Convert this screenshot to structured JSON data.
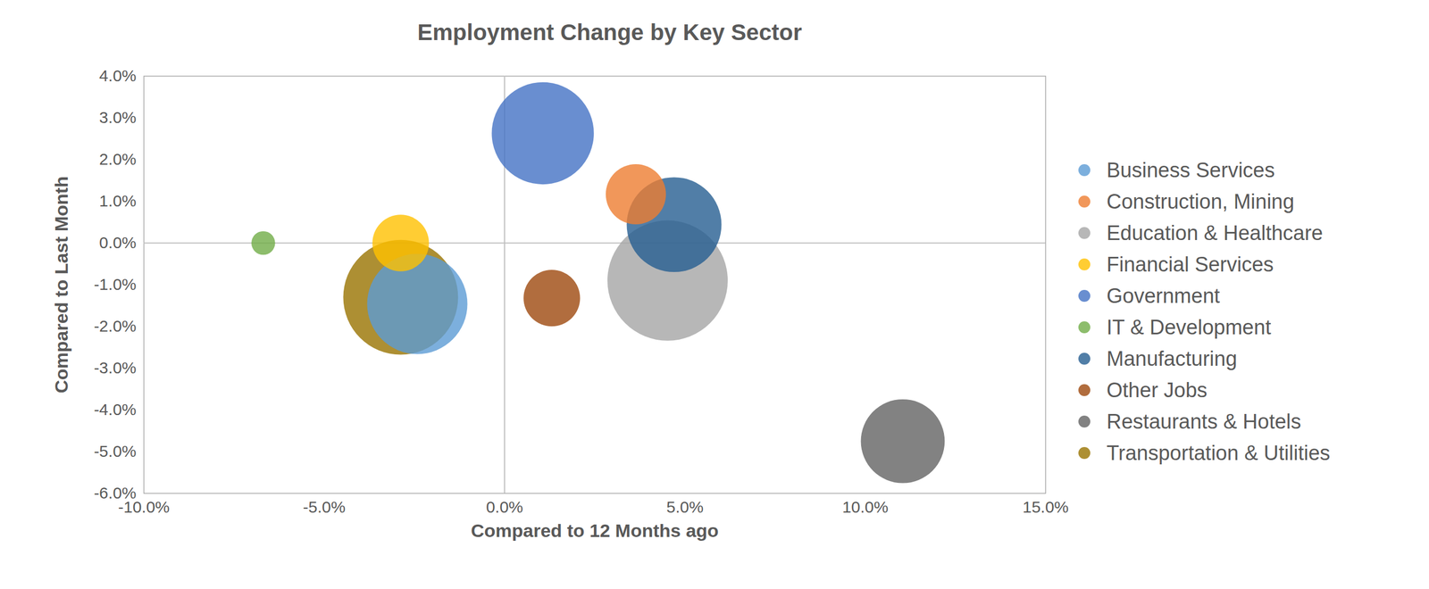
{
  "chart_data": {
    "type": "bubble",
    "title": "Employment Change by Key Sector",
    "x_label": "Compared to 12 Months ago",
    "y_label": "Compared to Last Month",
    "xlim": [
      -10,
      15
    ],
    "ylim": [
      -6,
      4
    ],
    "xticks": [
      {
        "value": -10,
        "label": "-10.0%"
      },
      {
        "value": -5,
        "label": "-5.0%"
      },
      {
        "value": 0,
        "label": "0.0%"
      },
      {
        "value": 5,
        "label": "5.0%"
      },
      {
        "value": 10,
        "label": "10.0%"
      },
      {
        "value": 15,
        "label": "15.0%"
      }
    ],
    "yticks": [
      {
        "value": -6,
        "label": "-6.0%"
      },
      {
        "value": -5,
        "label": "-5.0%"
      },
      {
        "value": -4,
        "label": "-4.0%"
      },
      {
        "value": -3,
        "label": "-3.0%"
      },
      {
        "value": -2,
        "label": "-2.0%"
      },
      {
        "value": -1,
        "label": "-1.0%"
      },
      {
        "value": 0,
        "label": "0.0%"
      },
      {
        "value": 1,
        "label": "1.0%"
      },
      {
        "value": 2,
        "label": "2.0%"
      },
      {
        "value": 3,
        "label": "3.0%"
      },
      {
        "value": 4,
        "label": "4.0%"
      }
    ],
    "grid": false,
    "legend": "right",
    "series": [
      {
        "name": "Business Services",
        "color": "#5b9bd5",
        "x": -2.42,
        "y": -1.46,
        "size": 3025
      },
      {
        "name": "Construction, Mining",
        "color": "#ed7d31",
        "x": 3.64,
        "y": 1.17,
        "size": 1089
      },
      {
        "name": "Education & Healthcare",
        "color": "#a5a5a5",
        "x": 4.52,
        "y": -0.9,
        "size": 4356
      },
      {
        "name": "Financial Services",
        "color": "#ffc000",
        "x": -2.88,
        "y": 0,
        "size": 961
      },
      {
        "name": "Government",
        "color": "#4472c4",
        "x": 1.06,
        "y": 2.63,
        "size": 3136
      },
      {
        "name": "IT & Development",
        "color": "#70ad47",
        "x": -6.69,
        "y": 0,
        "size": 169
      },
      {
        "name": "Manufacturing",
        "color": "#255e91",
        "x": 4.7,
        "y": 0.44,
        "size": 2704
      },
      {
        "name": "Other Jobs",
        "color": "#9e480e",
        "x": 1.31,
        "y": -1.32,
        "size": 961
      },
      {
        "name": "Restaurants & Hotels",
        "color": "#636363",
        "x": 11.04,
        "y": -4.75,
        "size": 2116
      },
      {
        "name": "Transportation & Utilities",
        "color": "#997300",
        "x": -2.88,
        "y": -1.3,
        "size": 3969
      }
    ]
  }
}
